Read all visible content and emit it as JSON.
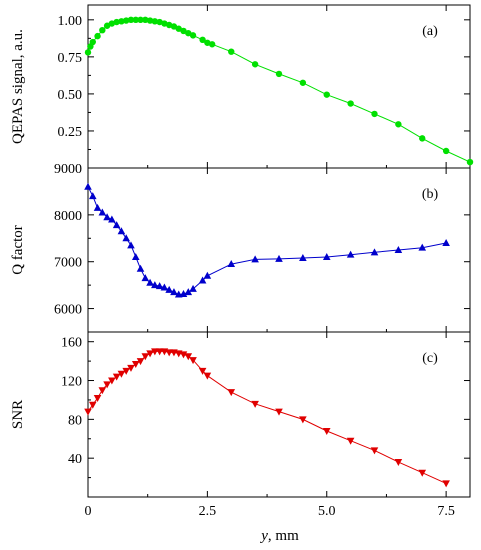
{
  "chart_data": [
    {
      "type": "line",
      "panel_label": "(a)",
      "ylabel": "QEPAS signal, a.u.",
      "ylim": [
        0.0,
        1.1
      ],
      "yticks": [
        0.25,
        0.5,
        0.75,
        1.0
      ],
      "ytick_labels": [
        "0.25",
        "0.50",
        "0.75",
        "1.00"
      ],
      "extra_tick_label": "9000",
      "marker": "circle",
      "color": "#00e000",
      "x": [
        0.0,
        0.05,
        0.1,
        0.2,
        0.3,
        0.4,
        0.5,
        0.6,
        0.7,
        0.8,
        0.9,
        1.0,
        1.1,
        1.2,
        1.3,
        1.4,
        1.5,
        1.6,
        1.7,
        1.8,
        1.9,
        2.0,
        2.1,
        2.2,
        2.4,
        2.5,
        2.6,
        3.0,
        3.5,
        4.0,
        4.5,
        5.0,
        5.5,
        6.0,
        6.5,
        7.0,
        7.5,
        8.0
      ],
      "y": [
        0.78,
        0.82,
        0.85,
        0.89,
        0.93,
        0.96,
        0.975,
        0.985,
        0.99,
        0.995,
        1.0,
        1.0,
        1.0,
        1.0,
        0.995,
        0.99,
        0.985,
        0.975,
        0.965,
        0.955,
        0.94,
        0.925,
        0.91,
        0.895,
        0.865,
        0.845,
        0.835,
        0.785,
        0.7,
        0.635,
        0.575,
        0.495,
        0.435,
        0.365,
        0.295,
        0.2,
        0.115,
        0.04
      ]
    },
    {
      "type": "line",
      "panel_label": "(b)",
      "ylabel": "Q factor",
      "ylim": [
        5500,
        9000
      ],
      "yticks": [
        6000,
        7000,
        8000
      ],
      "ytick_labels": [
        "6000",
        "7000",
        "8000"
      ],
      "marker": "triangle-up",
      "color": "#0000cc",
      "x": [
        0.0,
        0.1,
        0.2,
        0.3,
        0.4,
        0.5,
        0.6,
        0.7,
        0.8,
        0.9,
        1.0,
        1.1,
        1.2,
        1.3,
        1.4,
        1.5,
        1.6,
        1.7,
        1.8,
        1.9,
        2.0,
        2.1,
        2.2,
        2.4,
        2.5,
        3.0,
        3.5,
        4.0,
        4.5,
        5.0,
        5.5,
        6.0,
        6.5,
        7.0,
        7.5
      ],
      "y": [
        8600,
        8400,
        8150,
        8050,
        7950,
        7900,
        7780,
        7650,
        7500,
        7350,
        7100,
        6850,
        6650,
        6550,
        6500,
        6480,
        6450,
        6400,
        6350,
        6300,
        6310,
        6350,
        6420,
        6600,
        6700,
        6950,
        7050,
        7060,
        7080,
        7100,
        7150,
        7200,
        7250,
        7300,
        7400
      ]
    },
    {
      "type": "line",
      "panel_label": "(c)",
      "ylabel": "SNR",
      "ylim": [
        0,
        170
      ],
      "yticks": [
        40,
        80,
        120,
        160
      ],
      "ytick_labels": [
        "40",
        "80",
        "120",
        "160"
      ],
      "marker": "triangle-down",
      "color": "#e00000",
      "x": [
        0.0,
        0.1,
        0.2,
        0.3,
        0.4,
        0.5,
        0.6,
        0.7,
        0.8,
        0.9,
        1.0,
        1.1,
        1.2,
        1.3,
        1.4,
        1.5,
        1.6,
        1.7,
        1.8,
        1.9,
        2.0,
        2.1,
        2.2,
        2.4,
        2.5,
        3.0,
        3.5,
        4.0,
        4.5,
        5.0,
        5.5,
        6.0,
        6.5,
        7.0,
        7.5
      ],
      "y": [
        88,
        95,
        102,
        110,
        116,
        120,
        124,
        127,
        130,
        133,
        137,
        140,
        145,
        148,
        150,
        150,
        150,
        149,
        149,
        148,
        147,
        145,
        141,
        130,
        125,
        108,
        96,
        88,
        80,
        68,
        58,
        48,
        36,
        25,
        14
      ]
    }
  ],
  "x_axis": {
    "label_prefix": "y",
    "label_suffix": ", mm",
    "xlim": [
      0,
      8
    ],
    "ticks": [
      0,
      2.5,
      5.0,
      7.5
    ],
    "tick_labels": [
      "0",
      "2.5",
      "5.0",
      "7.5"
    ]
  }
}
